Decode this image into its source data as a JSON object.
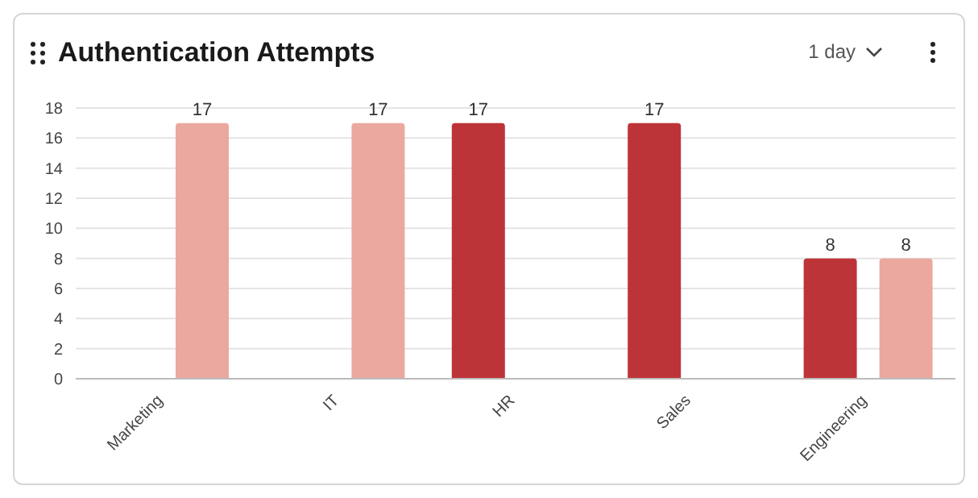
{
  "chart_data": {
    "type": "bar",
    "title": "Authentication Attempts",
    "annotations": [
      "1 day"
    ],
    "categories": [
      "Marketing",
      "IT",
      "HR",
      "Sales",
      "Engineering"
    ],
    "series": [
      {
        "color": "#bd3438",
        "values": [
          null,
          null,
          17,
          17,
          8
        ]
      },
      {
        "color": "#eba89e",
        "values": [
          17,
          17,
          null,
          null,
          8
        ]
      }
    ],
    "ylim": [
      0,
      18
    ],
    "yticks": [
      0,
      2,
      4,
      6,
      8,
      10,
      12,
      14,
      16,
      18
    ],
    "grid": "y",
    "data_labels": true,
    "legend": false
  }
}
